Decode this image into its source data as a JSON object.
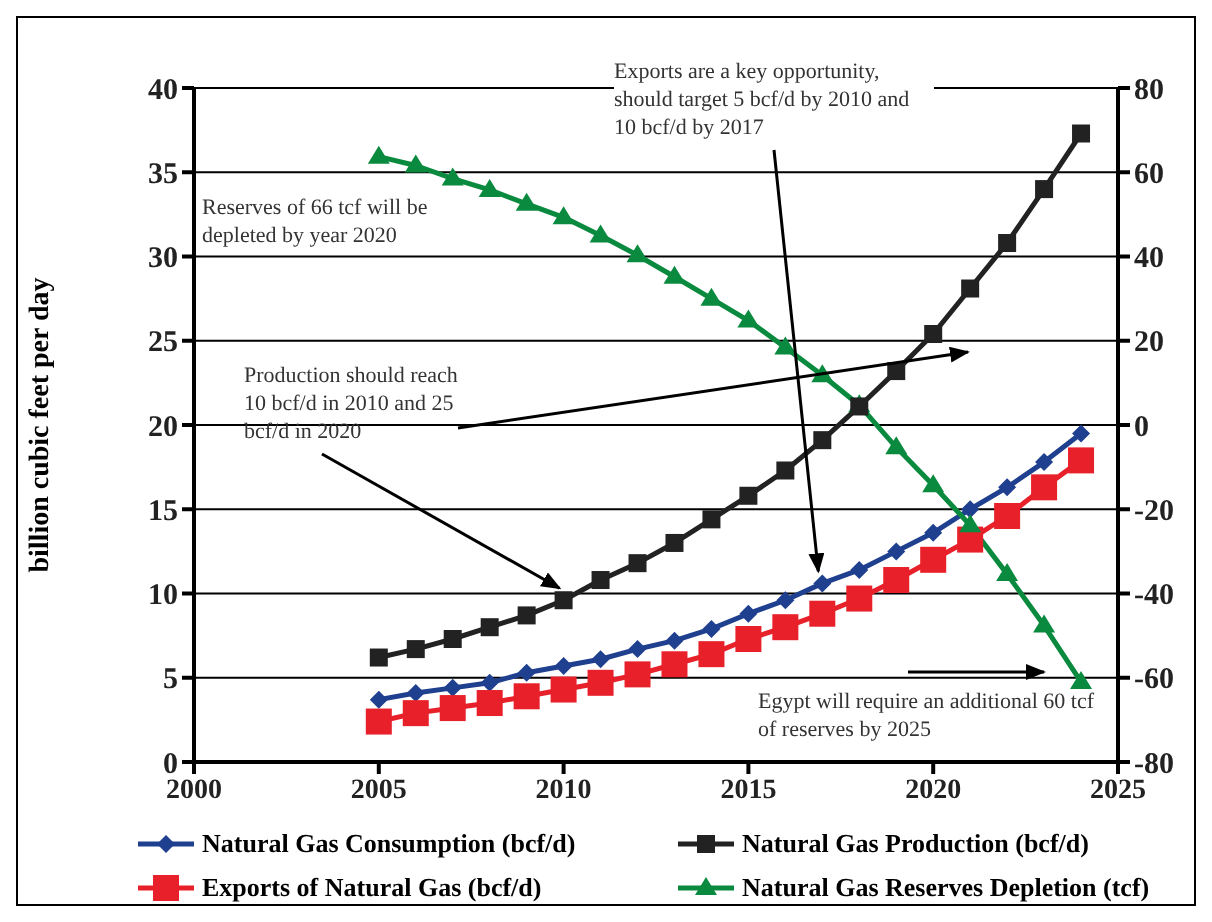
{
  "chart_data": {
    "type": "line",
    "ylabel": "billion cubic feet per day",
    "x": [
      2005,
      2006,
      2007,
      2008,
      2009,
      2010,
      2011,
      2012,
      2013,
      2014,
      2015,
      2016,
      2017,
      2018,
      2019,
      2020,
      2021,
      2022,
      2023,
      2024
    ],
    "xlim": [
      2000,
      2025
    ],
    "xticks": [
      2000,
      2005,
      2010,
      2015,
      2020,
      2025
    ],
    "ylim": [
      0,
      40
    ],
    "yticks": [
      0,
      5,
      10,
      15,
      20,
      25,
      30,
      35,
      40
    ],
    "y2lim": [
      -80,
      80
    ],
    "y2ticks": [
      -80,
      -60,
      -40,
      -20,
      0,
      20,
      40,
      60,
      80
    ],
    "grid": "y",
    "legend": "bottom",
    "line_style": "solid",
    "series": [
      {
        "name": "Natural Gas Consumption (bcf/d)",
        "color": "#1f3f8f",
        "marker": "diamond",
        "values": [
          3.7,
          4.1,
          4.4,
          4.7,
          5.3,
          5.7,
          6.1,
          6.7,
          7.2,
          7.9,
          8.8,
          9.6,
          10.6,
          11.4,
          12.5,
          13.6,
          15.0,
          16.3,
          17.8,
          19.5
        ]
      },
      {
        "name": "Natural Gas Production (bcf/d)",
        "color": "#222222",
        "marker": "square",
        "values": [
          6.2,
          6.7,
          7.3,
          8.0,
          8.7,
          9.6,
          10.8,
          11.8,
          13.0,
          14.4,
          15.8,
          17.3,
          19.1,
          21.1,
          23.2,
          25.4,
          28.1,
          30.8,
          34.0,
          37.3
        ]
      },
      {
        "name": "Exports of Natural Gas (bcf/d)",
        "color": "#e8202a",
        "marker": "square",
        "values": [
          2.4,
          2.9,
          3.2,
          3.5,
          3.9,
          4.3,
          4.7,
          5.2,
          5.8,
          6.4,
          7.3,
          8.0,
          8.8,
          9.7,
          10.8,
          12.0,
          13.2,
          14.6,
          16.3,
          17.9
        ]
      },
      {
        "name": "Natural Gas Reserves Depletion (tcf)",
        "color": "#0a8a3e",
        "marker": "triangle",
        "axis": "y2",
        "values": [
          63.7,
          61.6,
          58.5,
          55.8,
          52.5,
          49.3,
          45.0,
          40.3,
          35.2,
          30.0,
          24.8,
          18.4,
          11.8,
          4.7,
          -5.3,
          -14.3,
          -23.8,
          -35.4,
          -47.6,
          -61.0
        ]
      }
    ],
    "annotations": [
      {
        "text": "Exports are a key opportunity, should target 5 bcf/d by 2010 and 10 bcf/d by 2017",
        "x": 2017,
        "y": 10.6
      },
      "Reserves of 66 tcf will be depleted by year 2020",
      {
        "text": "Production should reach 10 bcf/d in 2010 and 25 bcf/d in 2020",
        "x": 2010,
        "y": 9.6
      },
      "Egypt will require an additional 60 tcf of reserves by 2025"
    ]
  }
}
